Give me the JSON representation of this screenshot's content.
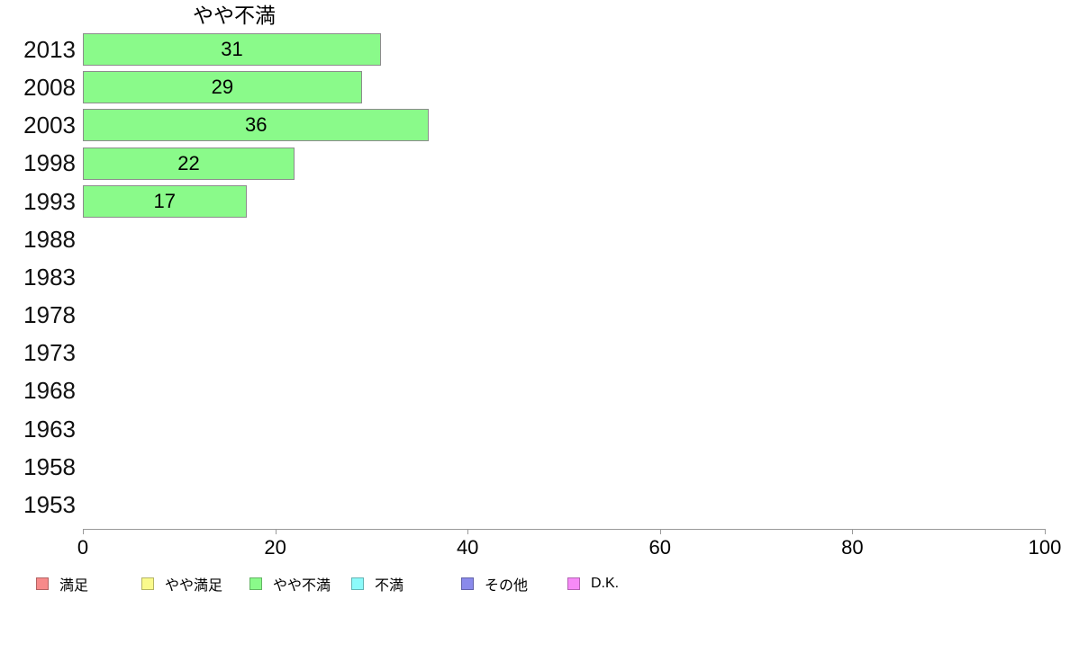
{
  "chart_data": {
    "type": "bar",
    "orientation": "horizontal",
    "title": "やや不満",
    "categories": [
      "2013",
      "2008",
      "2003",
      "1998",
      "1993",
      "1988",
      "1983",
      "1978",
      "1973",
      "1968",
      "1963",
      "1958",
      "1953"
    ],
    "values": [
      31,
      29,
      36,
      22,
      17,
      null,
      null,
      null,
      null,
      null,
      null,
      null,
      null
    ],
    "xlim": [
      0,
      100
    ],
    "x_ticks": [
      0,
      20,
      40,
      60,
      80,
      100
    ],
    "grid": false,
    "bar_fill": "#8afa8a",
    "bar_border": "#8c8c8c",
    "axis_color": "#999999",
    "legend_position": "bottom",
    "legend": [
      {
        "label": "満足",
        "color": "#f78a8a"
      },
      {
        "label": "やや満足",
        "color": "#fafa8c"
      },
      {
        "label": "やや不満",
        "color": "#8afa8a"
      },
      {
        "label": "不満",
        "color": "#8cfafa"
      },
      {
        "label": "その他",
        "color": "#8a8aeb"
      },
      {
        "label": "D.K.",
        "color": "#f78af7"
      }
    ]
  }
}
